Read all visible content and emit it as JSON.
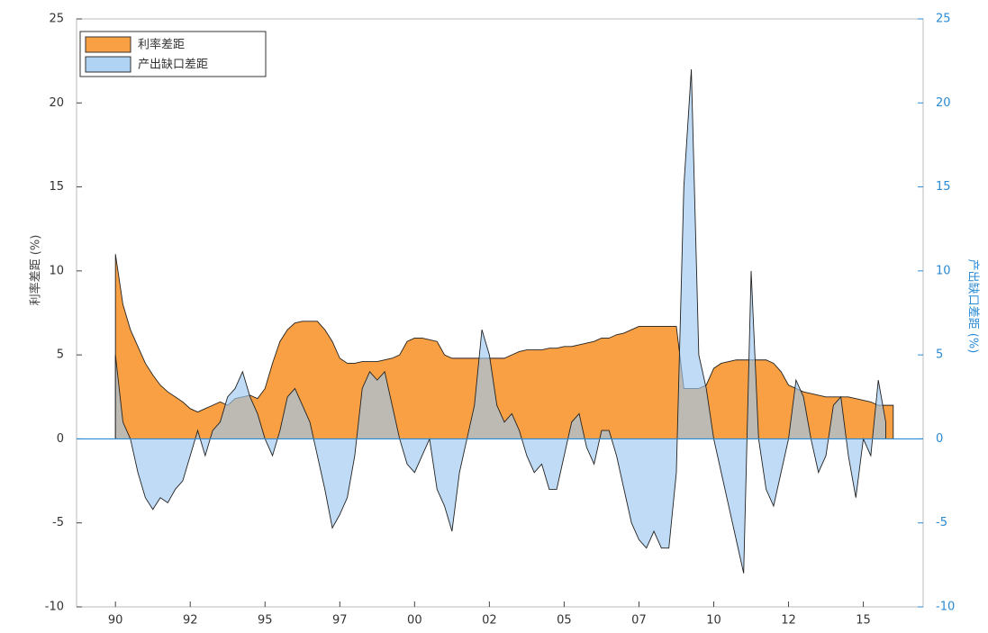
{
  "chart_data": {
    "type": "area",
    "x_label_hidden": false,
    "ylabel": "利率差距 (%)",
    "y2label": "产出缺口差距 (%)",
    "legend": "upper left",
    "xlim": [
      1988.7,
      2017.0
    ],
    "xticks": [
      {
        "value": 1990,
        "label": "90"
      },
      {
        "value": 1992.5,
        "label": "92"
      },
      {
        "value": 1995,
        "label": "95"
      },
      {
        "value": 1997.5,
        "label": "97"
      },
      {
        "value": 2000,
        "label": "00"
      },
      {
        "value": 2002.5,
        "label": "02"
      },
      {
        "value": 2005,
        "label": "05"
      },
      {
        "value": 2007.5,
        "label": "07"
      },
      {
        "value": 2010,
        "label": "10"
      },
      {
        "value": 2012.5,
        "label": "12"
      },
      {
        "value": 2015,
        "label": "15"
      }
    ],
    "ylim": [
      -10,
      25
    ],
    "yticks": [
      -10,
      -5,
      0,
      5,
      10,
      15,
      20,
      25
    ],
    "y2lim": [
      -10,
      25
    ],
    "y2ticks": [
      -10,
      -5,
      0,
      5,
      10,
      15,
      20,
      25
    ],
    "x": [
      1990,
      1990.25,
      1990.5,
      1990.75,
      1991,
      1991.25,
      1991.5,
      1991.75,
      1992,
      1992.25,
      1992.5,
      1992.75,
      1993,
      1993.25,
      1993.5,
      1993.75,
      1994,
      1994.25,
      1994.5,
      1994.75,
      1995,
      1995.25,
      1995.5,
      1995.75,
      1996,
      1996.25,
      1996.5,
      1996.75,
      1997,
      1997.25,
      1997.5,
      1997.75,
      1998,
      1998.25,
      1998.5,
      1998.75,
      1999,
      1999.25,
      1999.5,
      1999.75,
      2000,
      2000.25,
      2000.5,
      2000.75,
      2001,
      2001.25,
      2001.5,
      2001.75,
      2002,
      2002.25,
      2002.5,
      2002.75,
      2003,
      2003.25,
      2003.5,
      2003.75,
      2004,
      2004.25,
      2004.5,
      2004.75,
      2005,
      2005.25,
      2005.5,
      2005.75,
      2006,
      2006.25,
      2006.5,
      2006.75,
      2007,
      2007.25,
      2007.5,
      2007.75,
      2008,
      2008.25,
      2008.5,
      2008.75,
      2009,
      2009.25,
      2009.5,
      2009.75,
      2010,
      2010.25,
      2010.5,
      2010.75,
      2011,
      2011.25,
      2011.5,
      2011.75,
      2012,
      2012.25,
      2012.5,
      2012.75,
      2013,
      2013.25,
      2013.5,
      2013.75,
      2014,
      2014.25,
      2014.5,
      2014.75,
      2015,
      2015.25,
      2015.5,
      2015.75,
      2016
    ],
    "series": [
      {
        "name": "利率差距",
        "color": "#f7962f",
        "axis": "y",
        "values": [
          11,
          8,
          6.5,
          5.5,
          4.5,
          3.8,
          3.2,
          2.8,
          2.5,
          2.2,
          1.8,
          1.6,
          1.8,
          2.0,
          2.2,
          2.0,
          2.4,
          2.5,
          2.6,
          2.4,
          3.0,
          4.5,
          5.8,
          6.5,
          6.9,
          7.0,
          7.0,
          7.0,
          6.5,
          5.8,
          4.8,
          4.5,
          4.5,
          4.6,
          4.6,
          4.6,
          4.7,
          4.8,
          5.0,
          5.8,
          6.0,
          6.0,
          5.9,
          5.8,
          5.0,
          4.8,
          4.8,
          4.8,
          4.8,
          4.8,
          4.8,
          4.8,
          4.8,
          5.0,
          5.2,
          5.3,
          5.3,
          5.3,
          5.4,
          5.4,
          5.5,
          5.5,
          5.6,
          5.7,
          5.8,
          6.0,
          6.0,
          6.2,
          6.3,
          6.5,
          6.7,
          6.7,
          6.7,
          6.7,
          6.7,
          6.7,
          3.0,
          3.0,
          3.0,
          3.2,
          4.2,
          4.5,
          4.6,
          4.7,
          4.7,
          4.7,
          4.7,
          4.7,
          4.5,
          4.0,
          3.2,
          3.0,
          2.8,
          2.7,
          2.6,
          2.5,
          2.5,
          2.5,
          2.5,
          2.4,
          2.3,
          2.2,
          2.0,
          2.0,
          2.0
        ]
      },
      {
        "name": "产出缺口差距",
        "color": "#9cc8f0",
        "axis": "y2",
        "values": [
          5,
          1,
          0,
          -2,
          -3.5,
          -4.2,
          -3.5,
          -3.8,
          -3,
          -2.5,
          -1,
          0.5,
          -1,
          0.5,
          1,
          2.5,
          3,
          4,
          2.5,
          1.5,
          0,
          -1,
          0.5,
          2.5,
          3,
          2,
          1,
          -1,
          -3,
          -5.3,
          -4.5,
          -3.5,
          -1,
          3,
          4,
          3.5,
          4,
          2,
          0,
          -1.5,
          -2,
          -1,
          0,
          -3,
          -4,
          -5.5,
          -2,
          0,
          2,
          6.5,
          5,
          2,
          1,
          1.5,
          0.5,
          -1,
          -2,
          -1.5,
          -3,
          -3,
          -1,
          1,
          1.5,
          -0.5,
          -1.5,
          0.5,
          0.5,
          -1,
          -3,
          -5,
          -6,
          -6.5,
          -5.5,
          -6.5,
          -6.5,
          -2,
          15,
          22,
          5,
          3,
          0,
          -2,
          -4,
          -6,
          -8,
          10,
          0,
          -3,
          -4,
          -2,
          0,
          3.5,
          2.5,
          0,
          -2,
          -1,
          2,
          2.5,
          -1,
          -3.5,
          0,
          -1,
          3.5,
          1,
          null
        ]
      }
    ]
  }
}
